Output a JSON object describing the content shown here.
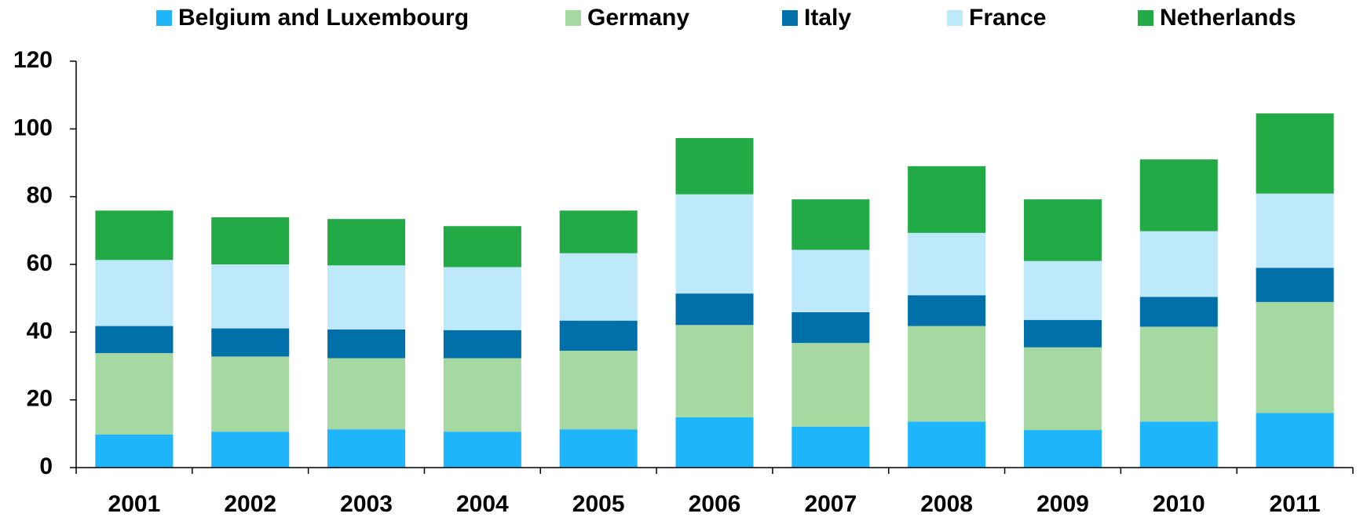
{
  "chart_data": {
    "type": "stacked_bar",
    "categories": [
      "2001",
      "2002",
      "2003",
      "2004",
      "2005",
      "2006",
      "2007",
      "2008",
      "2009",
      "2010",
      "2011"
    ],
    "series": [
      {
        "name": "Belgium and Luxembourg",
        "color": "#1fb5fb",
        "values": [
          9.8,
          10.6,
          11.3,
          10.6,
          11.3,
          14.9,
          12.1,
          13.6,
          11.1,
          13.6,
          16.1
        ]
      },
      {
        "name": "Germany",
        "color": "#a6d9a1",
        "values": [
          24.0,
          22.2,
          21.0,
          21.7,
          23.2,
          27.2,
          24.7,
          28.2,
          24.4,
          28.0,
          32.8
        ]
      },
      {
        "name": "Italy",
        "color": "#0070aa",
        "values": [
          8.0,
          8.3,
          8.5,
          8.3,
          8.9,
          9.3,
          9.1,
          9.1,
          8.1,
          8.8,
          10.1
        ]
      },
      {
        "name": "France",
        "color": "#bde9fb",
        "values": [
          19.5,
          18.9,
          18.9,
          18.6,
          19.9,
          29.3,
          18.4,
          18.4,
          17.4,
          19.4,
          21.9
        ]
      },
      {
        "name": "Netherlands",
        "color": "#22aa47",
        "values": [
          14.6,
          13.9,
          13.7,
          12.1,
          12.6,
          16.6,
          14.9,
          19.7,
          18.2,
          21.2,
          23.7
        ]
      }
    ],
    "ylim": [
      0,
      120
    ],
    "yticks": [
      0,
      20,
      40,
      60,
      80,
      100,
      120
    ],
    "grid": false,
    "legend": "top"
  }
}
